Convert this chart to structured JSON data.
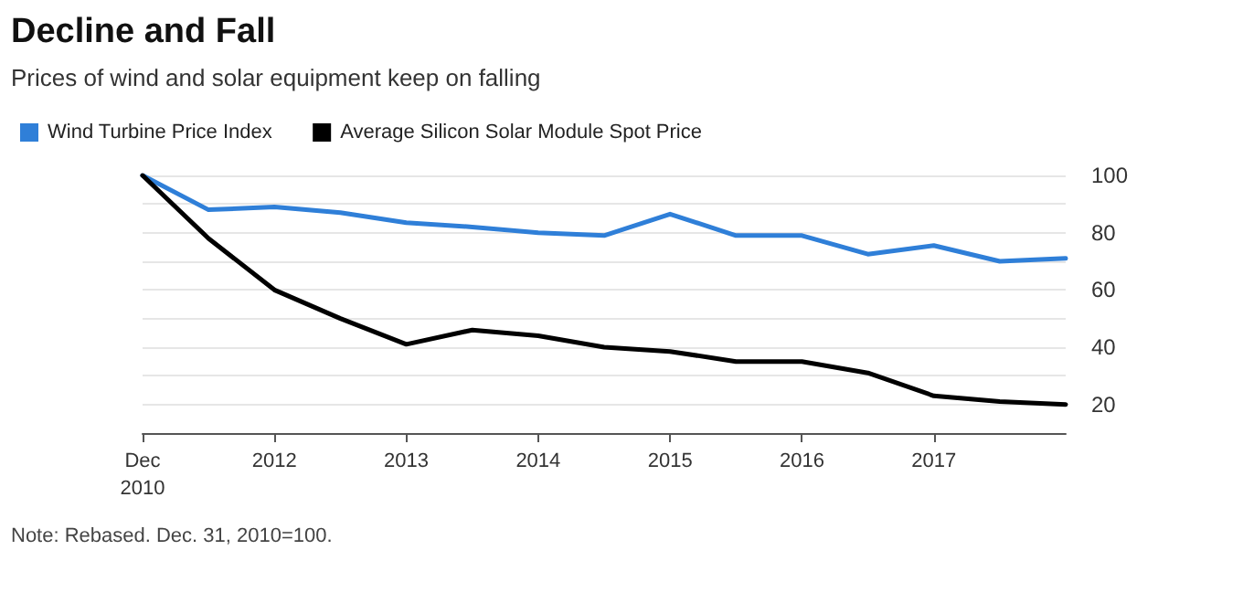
{
  "chart_data": {
    "type": "line",
    "title": "Decline and Fall",
    "subtitle": "Prices of wind and solar equipment keep on falling",
    "categories": [
      "Dec\n2010",
      null,
      "2012",
      null,
      "2013",
      null,
      "2014",
      null,
      "2015",
      null,
      "2016",
      null,
      "2017",
      null,
      null
    ],
    "series": [
      {
        "name": "Wind Turbine Price Index",
        "color": "#2f7fd8",
        "values": [
          100,
          88,
          89,
          87,
          83.5,
          82,
          80,
          79,
          86.5,
          79,
          79,
          72.5,
          75.5,
          70,
          71
        ]
      },
      {
        "name": "Average Silicon Solar Module Spot Price",
        "color": "#000000",
        "values": [
          100,
          78,
          60,
          50,
          41,
          46,
          44,
          40,
          38.5,
          35,
          35,
          31,
          23,
          21,
          20
        ]
      }
    ],
    "ylim": [
      10,
      100
    ],
    "yticks": [
      {
        "value": 10,
        "label": null
      },
      20,
      {
        "value": 30,
        "label": null
      },
      40,
      {
        "value": 50,
        "label": null
      },
      60,
      {
        "value": 70,
        "label": null
      },
      80,
      {
        "value": 90,
        "label": null
      },
      100
    ],
    "grid": "y",
    "legend": "top left",
    "marker": "none",
    "line_style": "solid",
    "annotations": [
      "Note: Rebased. Dec. 31, 2010=100."
    ]
  }
}
